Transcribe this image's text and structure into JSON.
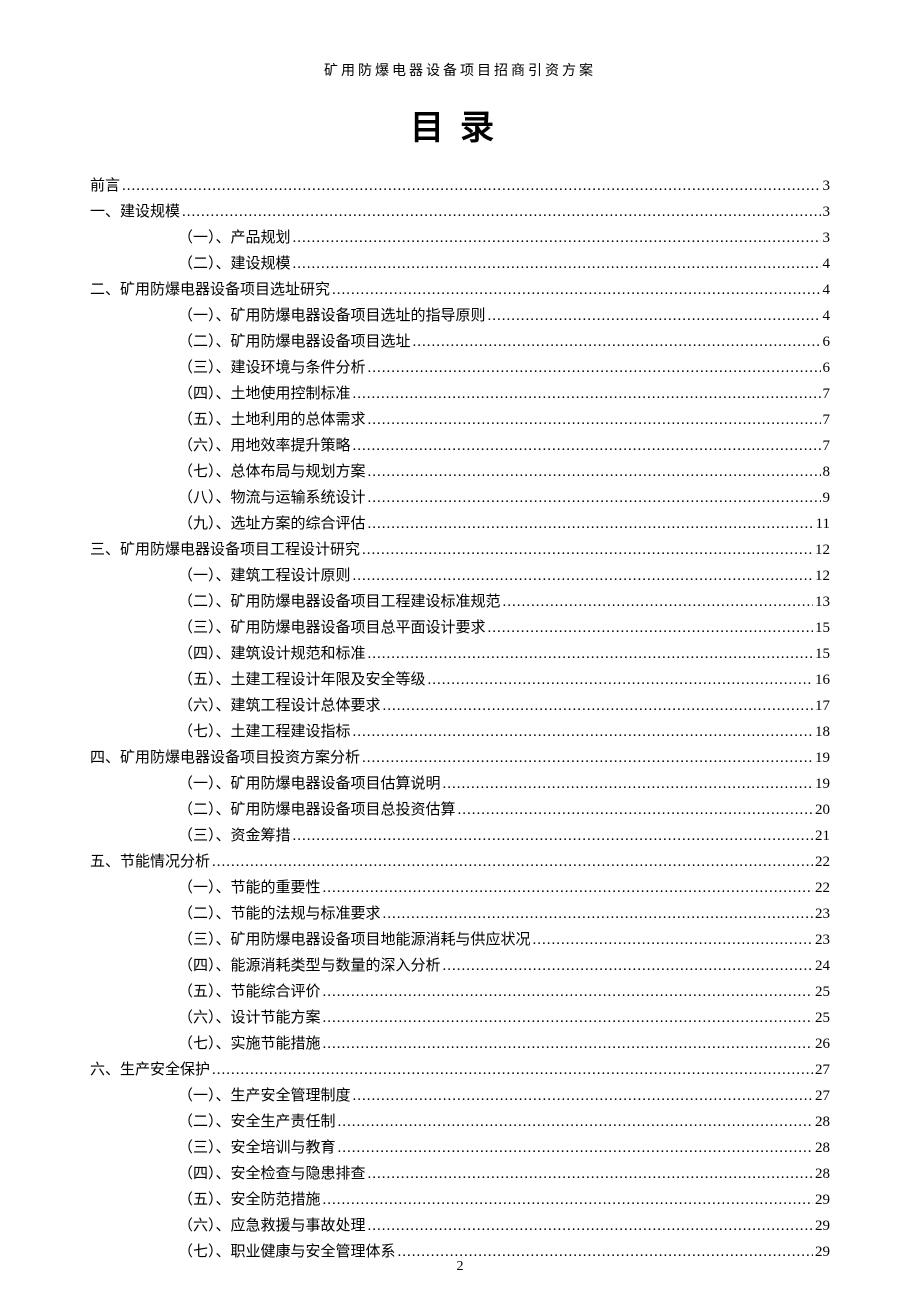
{
  "doc_header": "矿用防爆电器设备项目招商引资方案",
  "toc_title": "目录",
  "page_number": "2",
  "entries": [
    {
      "level": 0,
      "label": "前言",
      "page": "3"
    },
    {
      "level": 1,
      "label": "一、建设规模",
      "page": "3"
    },
    {
      "level": 2,
      "label": "（一）、产品规划",
      "page": "3"
    },
    {
      "level": 2,
      "label": "（二）、建设规模",
      "page": "4"
    },
    {
      "level": 1,
      "label": "二、矿用防爆电器设备项目选址研究",
      "page": "4"
    },
    {
      "level": 2,
      "label": "（一）、矿用防爆电器设备项目选址的指导原则",
      "page": "4"
    },
    {
      "level": 2,
      "label": "（二）、矿用防爆电器设备项目选址",
      "page": "6"
    },
    {
      "level": 2,
      "label": "（三）、建设环境与条件分析",
      "page": "6"
    },
    {
      "level": 2,
      "label": "（四）、土地使用控制标准",
      "page": "7"
    },
    {
      "level": 2,
      "label": "（五）、土地利用的总体需求",
      "page": "7"
    },
    {
      "level": 2,
      "label": "（六）、用地效率提升策略",
      "page": "7"
    },
    {
      "level": 2,
      "label": "（七）、总体布局与规划方案",
      "page": "8"
    },
    {
      "level": 2,
      "label": "（八）、物流与运输系统设计",
      "page": "9"
    },
    {
      "level": 2,
      "label": "（九）、选址方案的综合评估",
      "page": "11"
    },
    {
      "level": 1,
      "label": "三、矿用防爆电器设备项目工程设计研究",
      "page": "12"
    },
    {
      "level": 2,
      "label": "（一）、建筑工程设计原则",
      "page": "12"
    },
    {
      "level": 2,
      "label": "（二）、矿用防爆电器设备项目工程建设标准规范",
      "page": "13"
    },
    {
      "level": 2,
      "label": "（三）、矿用防爆电器设备项目总平面设计要求",
      "page": "15"
    },
    {
      "level": 2,
      "label": "（四）、建筑设计规范和标准",
      "page": "15"
    },
    {
      "level": 2,
      "label": "（五）、土建工程设计年限及安全等级",
      "page": "16"
    },
    {
      "level": 2,
      "label": "（六）、建筑工程设计总体要求",
      "page": "17"
    },
    {
      "level": 2,
      "label": "（七）、土建工程建设指标",
      "page": "18"
    },
    {
      "level": 1,
      "label": "四、矿用防爆电器设备项目投资方案分析",
      "page": "19"
    },
    {
      "level": 2,
      "label": "（一）、矿用防爆电器设备项目估算说明",
      "page": "19"
    },
    {
      "level": 2,
      "label": "（二）、矿用防爆电器设备项目总投资估算",
      "page": "20"
    },
    {
      "level": 2,
      "label": "（三）、资金筹措",
      "page": "21"
    },
    {
      "level": 1,
      "label": "五、节能情况分析",
      "page": "22"
    },
    {
      "level": 2,
      "label": "（一）、节能的重要性",
      "page": "22"
    },
    {
      "level": 2,
      "label": "（二）、节能的法规与标准要求",
      "page": "23"
    },
    {
      "level": 2,
      "label": "（三）、矿用防爆电器设备项目地能源消耗与供应状况",
      "page": "23"
    },
    {
      "level": 2,
      "label": "（四）、能源消耗类型与数量的深入分析",
      "page": "24"
    },
    {
      "level": 2,
      "label": "（五）、节能综合评价",
      "page": "25"
    },
    {
      "level": 2,
      "label": "（六）、设计节能方案",
      "page": "25"
    },
    {
      "level": 2,
      "label": "（七）、实施节能措施",
      "page": "26"
    },
    {
      "level": 1,
      "label": "六、生产安全保护",
      "page": "27"
    },
    {
      "level": 2,
      "label": "（一）、生产安全管理制度",
      "page": "27"
    },
    {
      "level": 2,
      "label": "（二）、安全生产责任制",
      "page": "28"
    },
    {
      "level": 2,
      "label": "（三）、安全培训与教育",
      "page": "28"
    },
    {
      "level": 2,
      "label": "（四）、安全检查与隐患排查",
      "page": "28"
    },
    {
      "level": 2,
      "label": "（五）、安全防范措施",
      "page": "29"
    },
    {
      "level": 2,
      "label": "（六）、应急救援与事故处理",
      "page": "29"
    },
    {
      "level": 2,
      "label": "（七）、职业健康与安全管理体系",
      "page": "29"
    }
  ]
}
